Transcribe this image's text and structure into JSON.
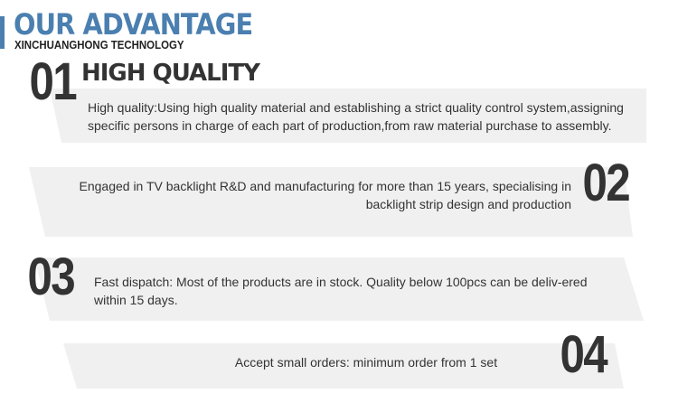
{
  "header": {
    "title": "OUR ADVANTAGE",
    "subtitle": "XINCHUANGHONG TECHNOLOGY",
    "accent": "#4a7fb0"
  },
  "items": [
    {
      "number": "01",
      "heading": "HIGH QUALITY",
      "text": "High quality:Using high quality material and establishing a strict quality control system,assigning specific persons in charge of each part of production,from raw material purchase to assembly."
    },
    {
      "number": "02",
      "text": "Engaged in TV backlight R&D and manufacturing for more than 15 years, specialising in backlight strip design and production"
    },
    {
      "number": "03",
      "text": "Fast dispatch: Most of the products are in stock. Quality below 100pcs can be deliv-ered within 15 days."
    },
    {
      "number": "04",
      "text": "Accept small orders: minimum order from 1 set"
    }
  ],
  "colors": {
    "panel": "#f0f0f0",
    "text": "#333333"
  }
}
